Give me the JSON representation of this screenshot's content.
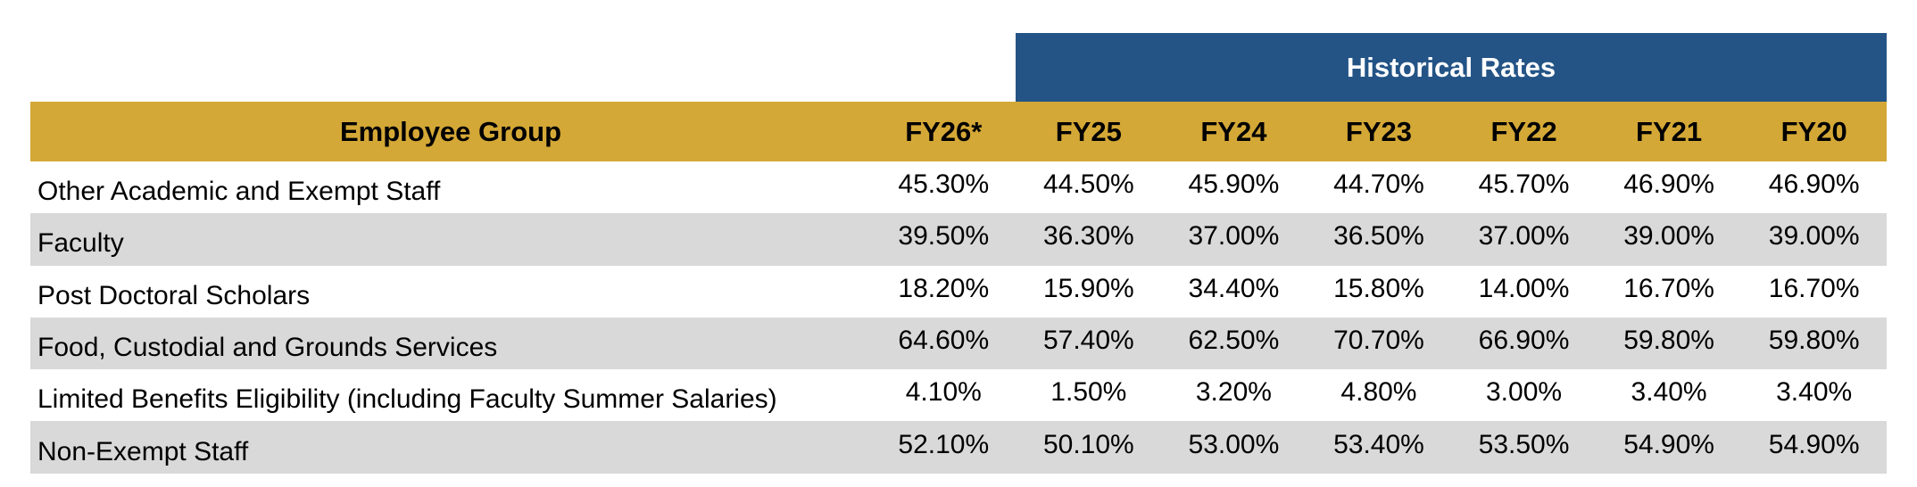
{
  "table": {
    "group_title": "Historical Rates",
    "columns": [
      "Employee Group",
      "FY26*",
      "FY25",
      "FY24",
      "FY23",
      "FY22",
      "FY21",
      "FY20"
    ],
    "rows": [
      [
        "Other Academic and Exempt Staff",
        "45.30%",
        "44.50%",
        "45.90%",
        "44.70%",
        "45.70%",
        "46.90%",
        "46.90%"
      ],
      [
        "Faculty",
        "39.50%",
        "36.30%",
        "37.00%",
        "36.50%",
        "37.00%",
        "39.00%",
        "39.00%"
      ],
      [
        "Post Doctoral Scholars",
        "18.20%",
        "15.90%",
        "34.40%",
        "15.80%",
        "14.00%",
        "16.70%",
        "16.70%"
      ],
      [
        "Food, Custodial and Grounds Services",
        "64.60%",
        "57.40%",
        "62.50%",
        "70.70%",
        "66.90%",
        "59.80%",
        "59.80%"
      ],
      [
        "Limited Benefits Eligibility (including Faculty Summer Salaries)",
        "4.10%",
        "1.50%",
        "3.20%",
        "4.80%",
        "3.00%",
        "3.40%",
        "3.40%"
      ],
      [
        "Non-Exempt Staff",
        "52.10%",
        "50.10%",
        "53.00%",
        "53.40%",
        "53.50%",
        "54.90%",
        "54.90%"
      ]
    ]
  }
}
